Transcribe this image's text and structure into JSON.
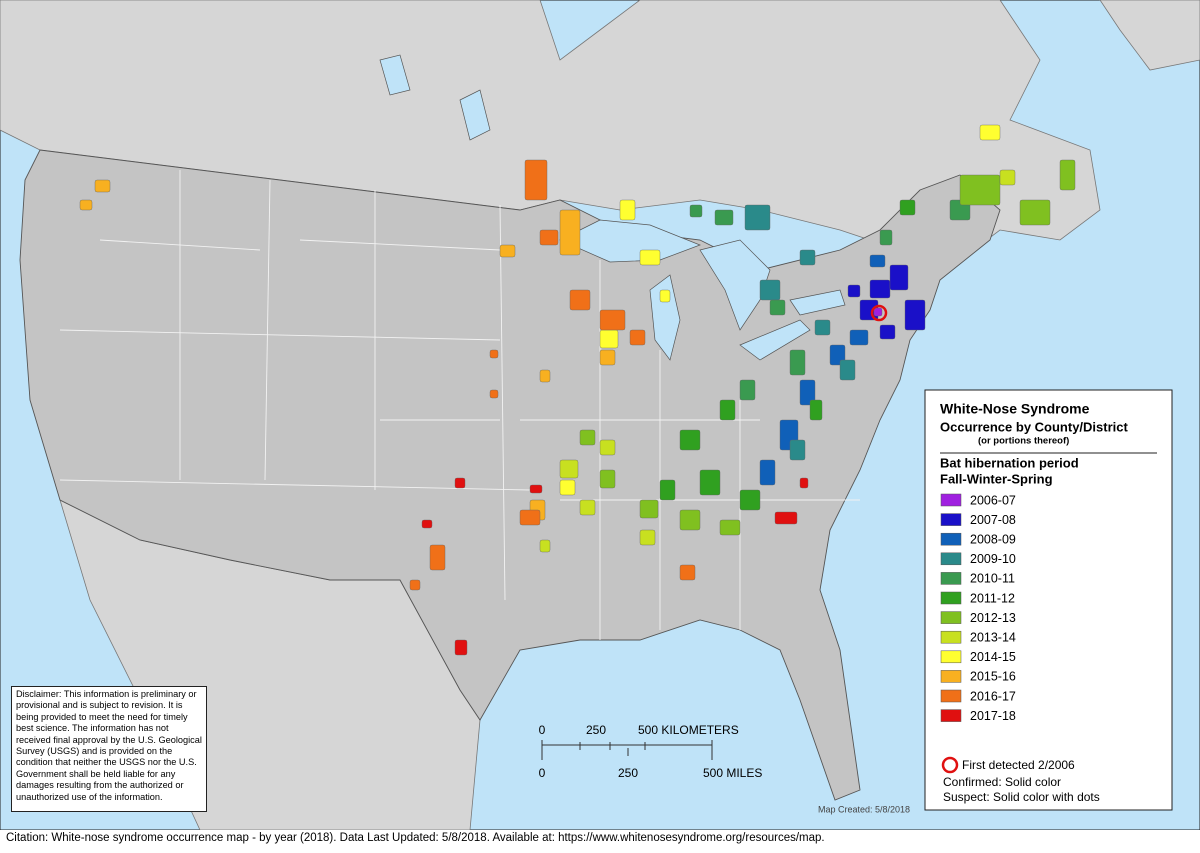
{
  "legend": {
    "title": "White-Nose Syndrome",
    "subtitle": "Occurrence by County/District",
    "note": "(or portions thereof)",
    "period_title": "Bat hibernation period",
    "period_subtitle": "Fall-Winter-Spring",
    "items": [
      {
        "label": "2006-07",
        "color": "#a020e0"
      },
      {
        "label": "2007-08",
        "color": "#1a10c8"
      },
      {
        "label": "2008-09",
        "color": "#1060b8"
      },
      {
        "label": "2009-10",
        "color": "#2a8a8a"
      },
      {
        "label": "2010-11",
        "color": "#3a9a50"
      },
      {
        "label": "2011-12",
        "color": "#30a020"
      },
      {
        "label": "2012-13",
        "color": "#80c020"
      },
      {
        "label": "2013-14",
        "color": "#c8e020"
      },
      {
        "label": "2014-15",
        "color": "#ffff30"
      },
      {
        "label": "2015-16",
        "color": "#f8b020"
      },
      {
        "label": "2016-17",
        "color": "#f07018"
      },
      {
        "label": "2017-18",
        "color": "#e01010"
      }
    ],
    "first_detected": "First detected 2/2006",
    "confirmed": "Confirmed:  Solid color",
    "suspect": "Suspect:  Solid color with dots"
  },
  "scale": {
    "km_labels": [
      "0",
      "250",
      "500 KILOMETERS"
    ],
    "mi_labels": [
      "0",
      "250",
      "500 MILES"
    ]
  },
  "disclaimer": "Disclaimer: This information is preliminary or provisional and is subject to revision. It is being provided to meet the need for timely best science. The information has not received final approval by the U.S. Geological Survey (USGS) and is provided on the condition that neither the USGS nor the U.S. Government shall be held liable for any damages resulting from the authorized or unauthorized use of the information.",
  "map_created": "Map Created:  5/8/2018",
  "citation": "Citation: White-nose syndrome occurrence map - by year (2018).  Data Last Updated: 5/8/2018. Available at: https://www.whitenosesyndrome.org/resources/map."
}
